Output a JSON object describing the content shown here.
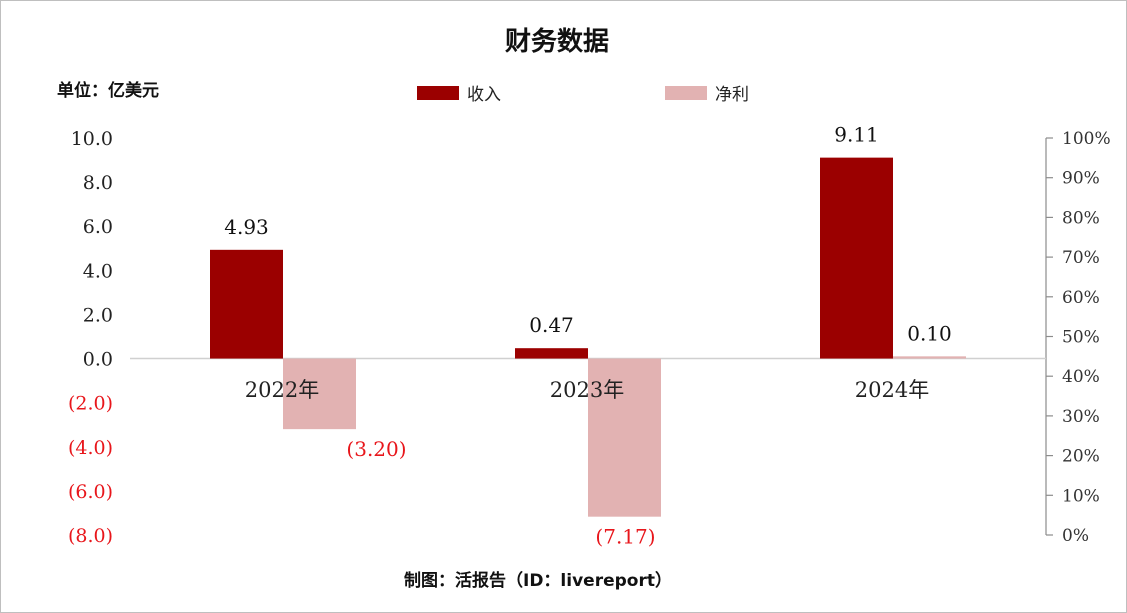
{
  "chart_data": {
    "type": "bar",
    "title": "财务数据",
    "unit_label": "单位：亿美元",
    "categories": [
      "2022年",
      "2023年",
      "2024年"
    ],
    "series": [
      {
        "name": "收入",
        "values": [
          4.93,
          0.47,
          9.11
        ],
        "labels": [
          "4.93",
          "0.47",
          "9.11"
        ],
        "color": "#9b0000"
      },
      {
        "name": "净利",
        "values": [
          -3.2,
          -7.17,
          0.1
        ],
        "labels": [
          "(3.20)",
          "(7.17)",
          "0.10"
        ],
        "color": "#e2b2b2"
      }
    ],
    "ylim": [
      -8,
      10
    ],
    "y_ticks": [
      {
        "value": 10,
        "label": "10.0"
      },
      {
        "value": 8,
        "label": "8.0"
      },
      {
        "value": 6,
        "label": "6.0"
      },
      {
        "value": 4,
        "label": "4.0"
      },
      {
        "value": 2,
        "label": "2.0"
      },
      {
        "value": 0,
        "label": "0.0"
      },
      {
        "value": -2,
        "label": "(2.0)"
      },
      {
        "value": -4,
        "label": "(4.0)"
      },
      {
        "value": -6,
        "label": "(6.0)"
      },
      {
        "value": -8,
        "label": "(8.0)"
      }
    ],
    "y2lim": [
      0,
      100
    ],
    "y2_ticks": [
      "100%",
      "90%",
      "80%",
      "70%",
      "60%",
      "50%",
      "40%",
      "30%",
      "20%",
      "10%",
      "0%"
    ],
    "negative_label_color": "#e8161b",
    "grid": false,
    "legend_position": "top"
  },
  "footer": {
    "source": "制图：活报告（ID：livereport）"
  }
}
